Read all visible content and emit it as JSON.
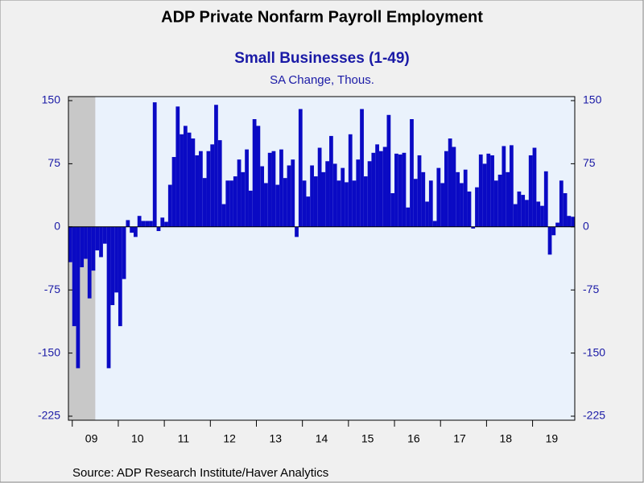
{
  "chart_data": {
    "type": "bar",
    "title": "ADP Private Nonfarm Payroll Employment",
    "subtitle": "Small Businesses (1-49)",
    "y_label": "SA Change, Thous.",
    "source": "Source:  ADP Research Institute/Haver Analytics",
    "color": "#0a0ac4",
    "shaded": {
      "from": 0,
      "to": 6,
      "color": "#c8c8c8"
    },
    "categories": [
      null,
      null,
      null,
      null,
      null,
      null,
      "09",
      null,
      null,
      null,
      null,
      null,
      null,
      null,
      null,
      null,
      null,
      null,
      "10",
      null,
      null,
      null,
      null,
      null,
      null,
      null,
      null,
      null,
      null,
      null,
      "11",
      null,
      null,
      null,
      null,
      null,
      null,
      null,
      null,
      null,
      null,
      null,
      "12",
      null,
      null,
      null,
      null,
      null,
      null,
      null,
      null,
      null,
      null,
      null,
      "13",
      null,
      null,
      null,
      null,
      null,
      null,
      null,
      null,
      null,
      null,
      null,
      "14",
      null,
      null,
      null,
      null,
      null,
      null,
      null,
      null,
      null,
      null,
      null,
      "15",
      null,
      null,
      null,
      null,
      null,
      null,
      null,
      null,
      null,
      null,
      null,
      "16",
      null,
      null,
      null,
      null,
      null,
      null,
      null,
      null,
      null,
      null,
      null,
      "17",
      null,
      null,
      null,
      null,
      null,
      null,
      null,
      null,
      null,
      null,
      null,
      "18",
      null,
      null,
      null,
      null,
      null,
      null,
      null,
      null,
      null,
      null,
      null,
      "19",
      null,
      null,
      null,
      null,
      null
    ],
    "values": [
      -42,
      -118,
      -168,
      -48,
      -38,
      -85,
      -52,
      -28,
      -36,
      -20,
      -168,
      -93,
      -78,
      -118,
      -62,
      8,
      -7,
      -12,
      13,
      7,
      7,
      7,
      148,
      -5,
      11,
      6,
      50,
      83,
      143,
      110,
      120,
      112,
      105,
      85,
      90,
      58,
      90,
      98,
      145,
      103,
      27,
      55,
      55,
      60,
      80,
      65,
      92,
      43,
      128,
      120,
      72,
      52,
      88,
      90,
      50,
      92,
      58,
      73,
      80,
      -12,
      140,
      55,
      36,
      73,
      60,
      94,
      65,
      78,
      108,
      75,
      55,
      70,
      53,
      110,
      55,
      80,
      140,
      60,
      78,
      88,
      98,
      90,
      95,
      133,
      40,
      87,
      86,
      88,
      23,
      128,
      57,
      85,
      65,
      30,
      55,
      7,
      70,
      52,
      90,
      105,
      95,
      65,
      52,
      68,
      42,
      -2,
      47,
      86,
      75,
      87,
      85,
      55,
      62,
      96,
      65,
      97,
      27,
      42,
      38,
      32,
      85,
      94,
      30,
      25,
      66,
      -33,
      -10,
      5,
      55,
      40,
      13,
      12
    ],
    "ylim": [
      -225,
      150
    ],
    "yticks": [
      150,
      75,
      0,
      -75,
      -150,
      -225
    ]
  }
}
